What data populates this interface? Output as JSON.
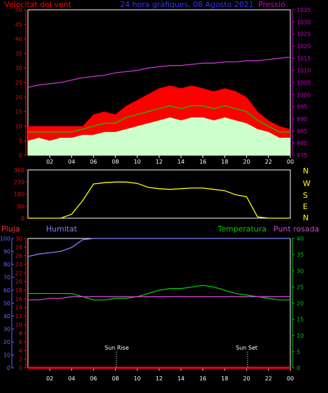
{
  "header": {
    "title": "24 hora gràfiques, 08 Agosto 2021",
    "wind_label": "Velocitat del vent",
    "pressure_label": "Pressió"
  },
  "lower_labels": {
    "rain": "Pluja",
    "humidity": "Humitat",
    "temperature": "Temperatura",
    "dewpoint": "Punt rosada",
    "sunrise": "Sun Rise",
    "sunset": "Sun Set"
  },
  "compass": [
    "N",
    "W",
    "S",
    "E",
    "N"
  ],
  "colors": {
    "wind_gust": "#ff0000",
    "wind_avg": "#00cc00",
    "wind_speed": "#ccffcc",
    "pressure": "#cc33cc",
    "direction": "#ffff00",
    "humidity": "#8080ff",
    "temperature": "#00cc00",
    "dewpoint": "#cc44cc",
    "rain": "#ff0000",
    "axis_left": "#ff0000",
    "axis_pressure": "#cc00cc",
    "axis_humidity": "#6666ff",
    "axis_temp": "#00cc00"
  },
  "chart_data": [
    {
      "type": "line",
      "name": "wind-pressure",
      "x_ticks": [
        "02",
        "04",
        "06",
        "08",
        "10",
        "12",
        "14",
        "16",
        "18",
        "20",
        "22",
        "00"
      ],
      "y_ticks_left": [
        "0",
        "5",
        "10",
        "15",
        "20",
        "25",
        "30",
        "35",
        "40",
        "45",
        "50"
      ],
      "y_ticks_right": [
        "975",
        "980",
        "985",
        "990",
        "995",
        "1000",
        "1005",
        "1010",
        "1015",
        "1020",
        "1025",
        "1030",
        "1035"
      ],
      "ylim_left": [
        0,
        50
      ],
      "ylim_right": [
        975,
        1035
      ],
      "x_hours": [
        0,
        1,
        2,
        3,
        4,
        5,
        6,
        7,
        8,
        9,
        10,
        11,
        12,
        13,
        14,
        15,
        16,
        17,
        18,
        19,
        20,
        21,
        22,
        23,
        24
      ],
      "series": [
        {
          "name": "gust",
          "values": [
            10,
            10,
            10,
            10,
            10,
            10,
            14,
            15,
            14,
            17,
            19,
            21,
            23,
            24,
            23,
            24,
            23,
            22,
            23,
            22,
            20,
            15,
            12,
            10,
            9
          ]
        },
        {
          "name": "avg",
          "values": [
            8,
            8,
            8,
            8,
            8,
            9,
            10,
            11,
            11,
            13,
            14,
            15,
            16,
            17,
            16,
            17,
            17,
            16,
            17,
            16,
            15,
            12,
            10,
            8,
            8
          ]
        },
        {
          "name": "speed",
          "values": [
            5,
            6,
            5,
            6,
            6,
            7,
            7,
            8,
            8,
            9,
            10,
            11,
            12,
            13,
            12,
            13,
            13,
            12,
            13,
            12,
            11,
            9,
            8,
            6,
            6
          ]
        },
        {
          "name": "pressure",
          "values": [
            1003,
            1004,
            1004.5,
            1005,
            1006,
            1007,
            1007.5,
            1008,
            1009,
            1009.5,
            1010,
            1011,
            1011.5,
            1012,
            1012,
            1012.5,
            1013,
            1013,
            1013.5,
            1013.5,
            1014,
            1014,
            1014.5,
            1015,
            1015.5
          ]
        }
      ]
    },
    {
      "type": "line",
      "name": "wind-direction",
      "y_ticks": [
        "360",
        "270",
        "180",
        "90",
        "0"
      ],
      "ylim": [
        0,
        360
      ],
      "x_hours": [
        0,
        1,
        2,
        3,
        4,
        5,
        6,
        7,
        8,
        9,
        10,
        11,
        12,
        13,
        14,
        15,
        16,
        17,
        18,
        19,
        20,
        21,
        22,
        23,
        24
      ],
      "values": [
        0,
        0,
        0,
        0,
        30,
        130,
        255,
        265,
        270,
        270,
        260,
        230,
        220,
        215,
        220,
        225,
        225,
        215,
        205,
        175,
        160,
        10,
        0,
        0,
        0
      ]
    },
    {
      "type": "line",
      "name": "temp-humidity-rain",
      "x_ticks": [
        "02",
        "04",
        "06",
        "08",
        "10",
        "12",
        "14",
        "16",
        "18",
        "20",
        "22",
        "00"
      ],
      "y_ticks_humidity": [
        "0",
        "10",
        "20",
        "30",
        "40",
        "50",
        "60",
        "70",
        "80",
        "90",
        "100"
      ],
      "y_ticks_rain": [
        "0",
        "2",
        "4",
        "6",
        "8",
        "10",
        "12",
        "14",
        "16",
        "18",
        "20",
        "22",
        "24",
        "26",
        "28",
        "30"
      ],
      "y_ticks_temp": [
        "0",
        "5",
        "10",
        "15",
        "20",
        "25",
        "30",
        "35",
        "40"
      ],
      "ylim_humidity": [
        0,
        100
      ],
      "ylim_temp": [
        0,
        40
      ],
      "x_hours": [
        0,
        1,
        2,
        3,
        4,
        5,
        6,
        7,
        8,
        9,
        10,
        11,
        12,
        13,
        14,
        15,
        16,
        17,
        18,
        19,
        20,
        21,
        22,
        23,
        24
      ],
      "series": [
        {
          "name": "humidity",
          "values": [
            86,
            88,
            89,
            90,
            93,
            99,
            100,
            100,
            100,
            100,
            100,
            100,
            100,
            100,
            100,
            100,
            100,
            100,
            100,
            100,
            100,
            100,
            100,
            100,
            100
          ]
        },
        {
          "name": "temperature",
          "values": [
            23,
            23,
            23,
            23,
            23,
            22,
            21,
            21,
            21.5,
            21.5,
            22,
            23,
            24,
            24.5,
            24.5,
            25,
            25.5,
            25,
            24,
            23,
            22.5,
            22,
            21.5,
            21,
            21
          ]
        },
        {
          "name": "dewpoint",
          "values": [
            21,
            21,
            21.5,
            21.5,
            22,
            22,
            22,
            22,
            22,
            22,
            22,
            22,
            22,
            22,
            22,
            22,
            22,
            22,
            22,
            22,
            22,
            22,
            22,
            22,
            22
          ]
        },
        {
          "name": "rain",
          "values": [
            0,
            0,
            0,
            0,
            0,
            0,
            0,
            0,
            0,
            0,
            0,
            0,
            0,
            0,
            0,
            0,
            0,
            0,
            0,
            0,
            0,
            0,
            0,
            0,
            0
          ]
        }
      ],
      "sunrise_hour": 8.1,
      "sunset_hour": 20.1
    }
  ]
}
